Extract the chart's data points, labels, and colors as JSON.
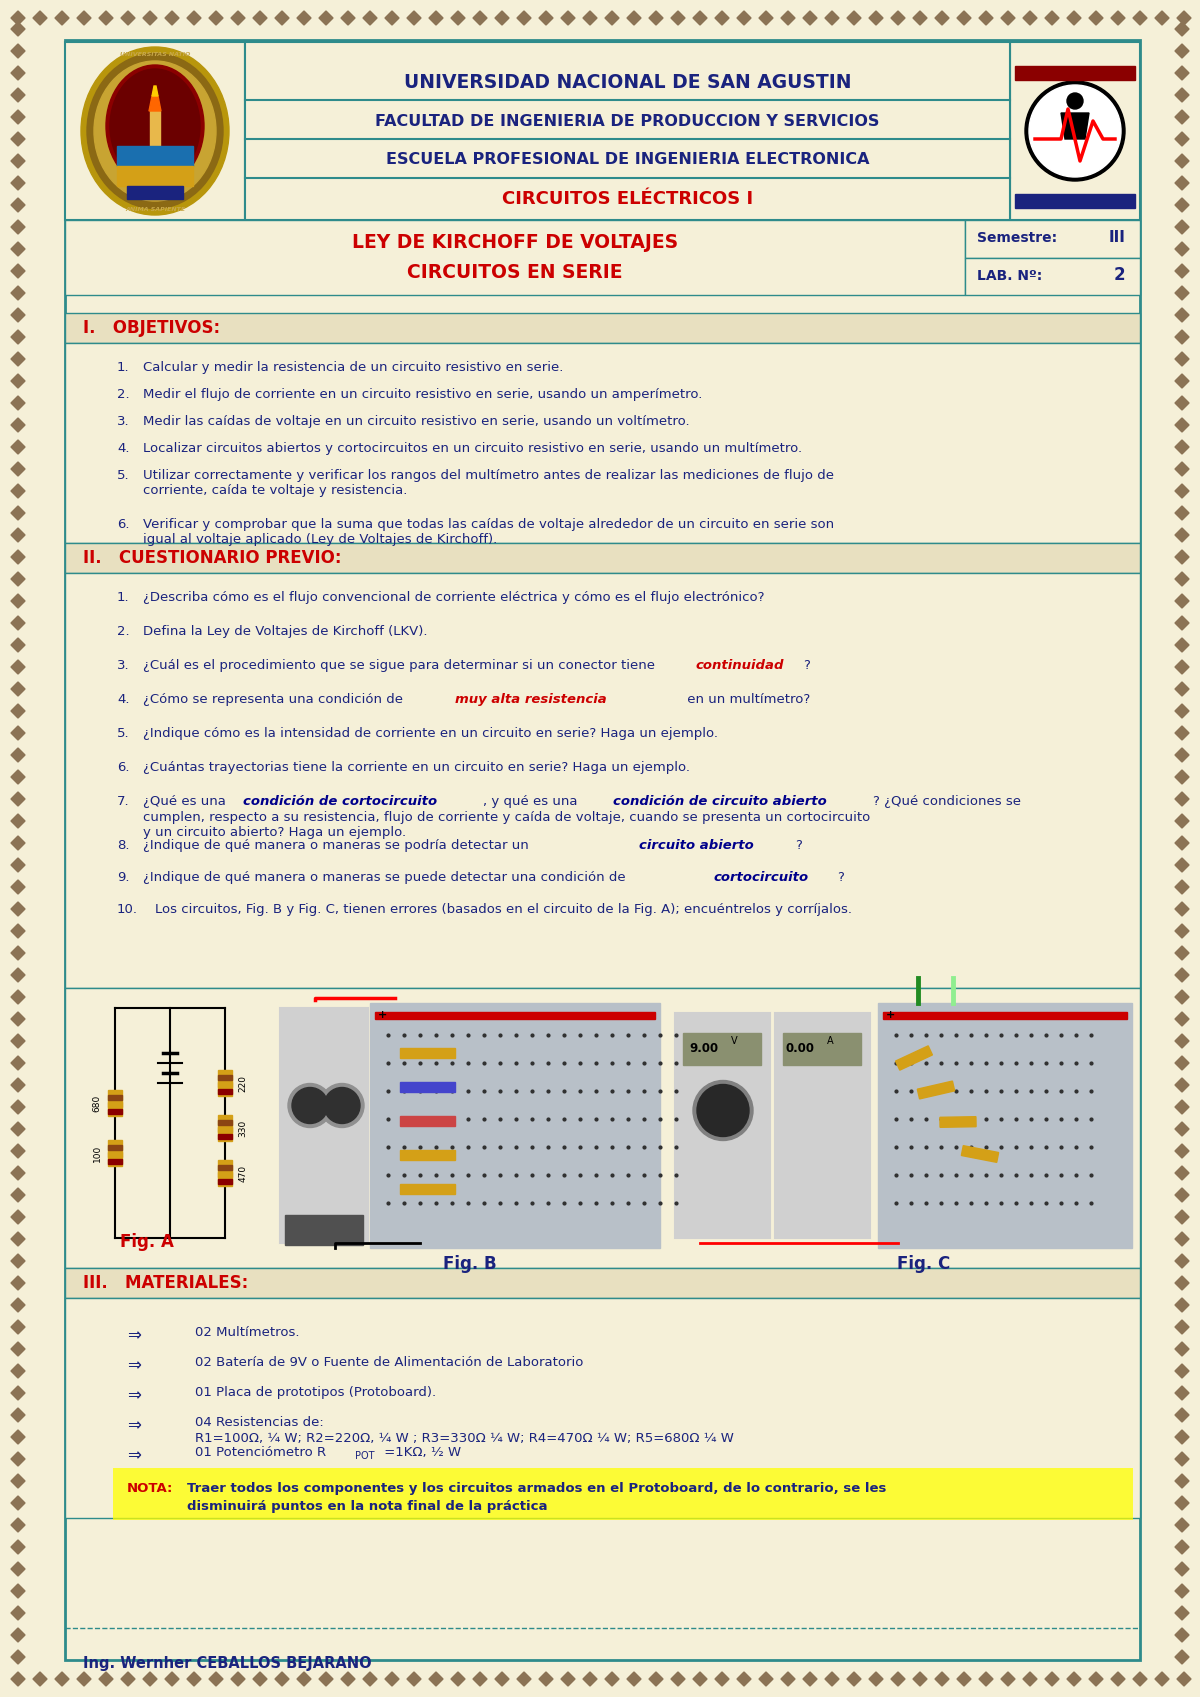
{
  "bg_color": "#f5f0d8",
  "teal_line_color": "#2e8b8b",
  "dark_blue": "#1a237e",
  "red_color": "#cc0000",
  "navy": "#00008b",
  "title1": "UNIVERSIDAD NACIONAL DE SAN AGUSTIN",
  "title2": "FACULTAD DE INGENIERIA DE PRODUCCION Y SERVICIOS",
  "title3": "ESCUELA PROFESIONAL DE INGENIERIA ELECTRONICA",
  "title4": "CIRCUITOS ELÉCTRICOS I",
  "subtitle1": "LEY DE KIRCHOFF DE VOLTAJES",
  "subtitle2": "CIRCUITOS EN SERIE",
  "semestre_label": "Semestre:",
  "semestre_val": "III",
  "lab_label": "LAB. Nº:",
  "lab_val": "2",
  "section1_title": "I.   OBJETIVOS:",
  "section2_title": "II.   CUESTIONARIO PREVIO:",
  "section3_title": "III.   MATERIALES:",
  "footer": "Ing. Wernher CEBALLOS BEJARANO",
  "fig_a_label": "Fig. A",
  "fig_b_label": "Fig. B",
  "fig_c_label": "Fig. C"
}
